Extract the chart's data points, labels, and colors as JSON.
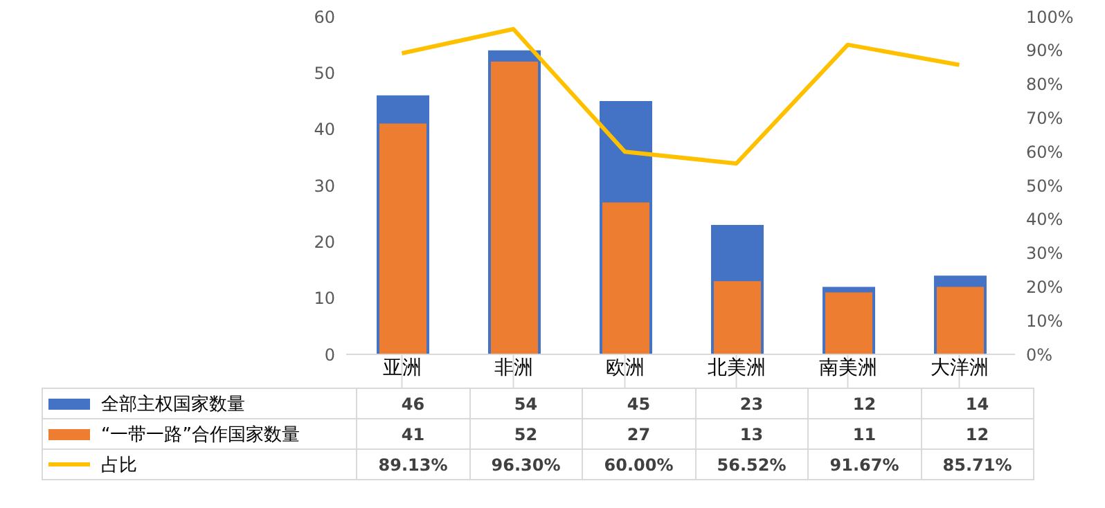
{
  "chart_data": {
    "type": "bar",
    "categories": [
      "亚洲",
      "非洲",
      "欧洲",
      "北美洲",
      "南美洲",
      "大洋洲"
    ],
    "series": [
      {
        "name": "全部主权国家数量",
        "color": "#4472c4",
        "values": [
          46,
          54,
          45,
          23,
          12,
          14
        ],
        "value_labels": [
          "46",
          "54",
          "45",
          "23",
          "12",
          "14"
        ]
      },
      {
        "name": "“一带一路”合作国家数量",
        "color": "#ed7d31",
        "values": [
          41,
          52,
          27,
          13,
          11,
          12
        ],
        "value_labels": [
          "41",
          "52",
          "27",
          "13",
          "11",
          "12"
        ]
      },
      {
        "name": "占比",
        "type": "line",
        "axis": "y2",
        "color": "#ffc000",
        "values": [
          89.13,
          96.3,
          60.0,
          56.52,
          91.67,
          85.71
        ],
        "value_labels": [
          "89.13%",
          "96.30%",
          "60.00%",
          "56.52%",
          "91.67%",
          "85.71%"
        ]
      }
    ],
    "ylim": [
      0,
      60
    ],
    "yticks": [
      0,
      10,
      20,
      30,
      40,
      50,
      60
    ],
    "y2lim": [
      0,
      100
    ],
    "y2ticks": [
      {
        "value": 0,
        "label": "0%"
      },
      {
        "value": 10,
        "label": "10%"
      },
      {
        "value": 20,
        "label": "20%"
      },
      {
        "value": 30,
        "label": "30%"
      },
      {
        "value": 40,
        "label": "40%"
      },
      {
        "value": 50,
        "label": "50%"
      },
      {
        "value": 60,
        "label": "60%"
      },
      {
        "value": 70,
        "label": "70%"
      },
      {
        "value": 80,
        "label": "80%"
      },
      {
        "value": 90,
        "label": "90%"
      },
      {
        "value": 100,
        "label": "100%"
      }
    ],
    "grid": false,
    "legend": "bottom",
    "marker": "none",
    "line_style": "solid"
  }
}
